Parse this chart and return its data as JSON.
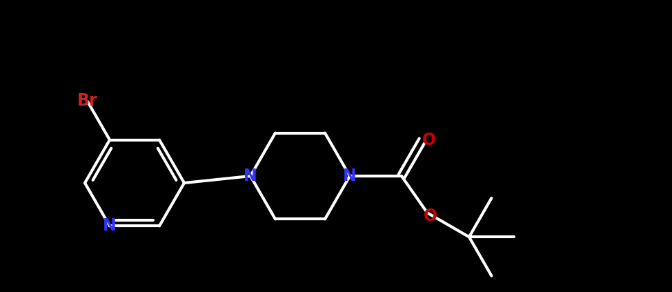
{
  "bg_color": "#000000",
  "bond_color": "#ffffff",
  "N_color": "#3333ff",
  "O_color": "#cc0000",
  "Br_color": "#cc2222",
  "linewidth": 3.0,
  "figsize": [
    9.74,
    4.23
  ],
  "dpi": 100,
  "xlim": [
    0,
    9.74
  ],
  "ylim": [
    0,
    4.23
  ]
}
